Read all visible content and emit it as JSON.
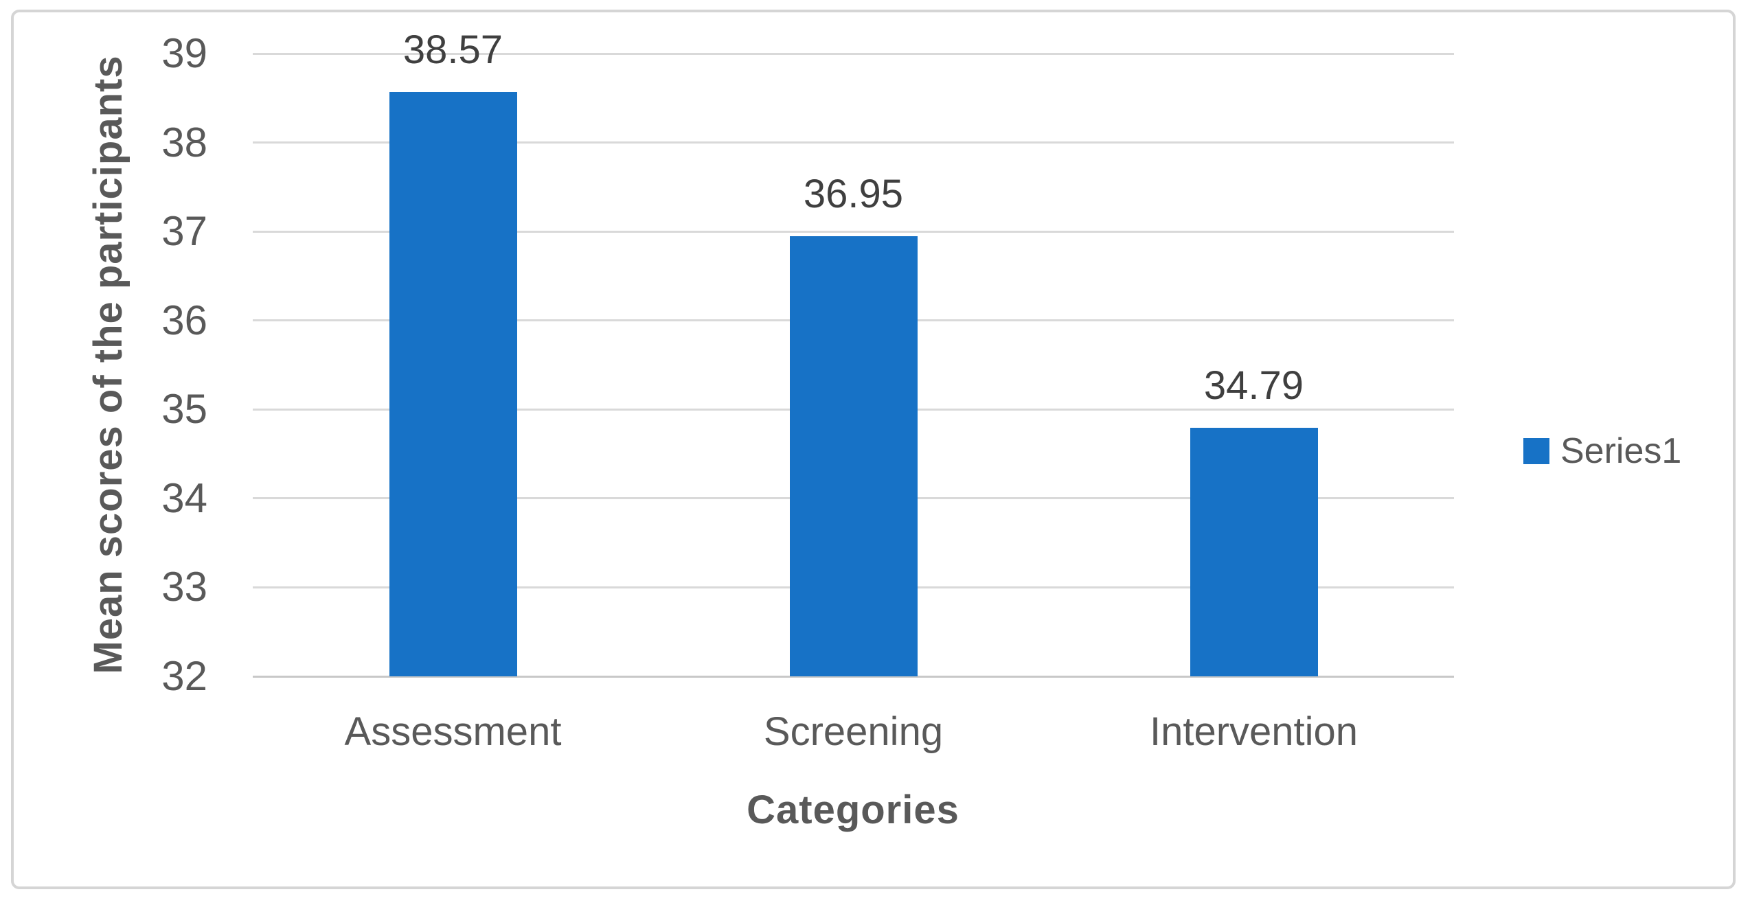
{
  "chart_data": {
    "type": "bar",
    "title": "",
    "categories": [
      "Assessment",
      "Screening",
      "Intervention"
    ],
    "series": [
      {
        "name": "Series1",
        "values": [
          38.57,
          36.95,
          34.79
        ]
      }
    ],
    "data_labels": [
      "38.57",
      "36.95",
      "34.79"
    ],
    "xlabel": "Categories",
    "ylabel": "Mean scores of the participants",
    "ylim": [
      32,
      39
    ],
    "yticks": [
      39,
      38,
      37,
      36,
      35,
      34,
      33,
      32
    ],
    "grid": true,
    "legend": {
      "position": "right",
      "entries": [
        "Series1"
      ]
    }
  },
  "colors": {
    "bar": "#1772c6",
    "gridline": "#d9d9d9",
    "axis_line": "#c8c8c8",
    "tick_text": "#595959",
    "category_text": "#595959",
    "data_label_text": "#3f3f3f",
    "axis_title_text": "#595959",
    "legend_text": "#595959",
    "frame_border": "#d5d5d5",
    "background": "#ffffff"
  }
}
